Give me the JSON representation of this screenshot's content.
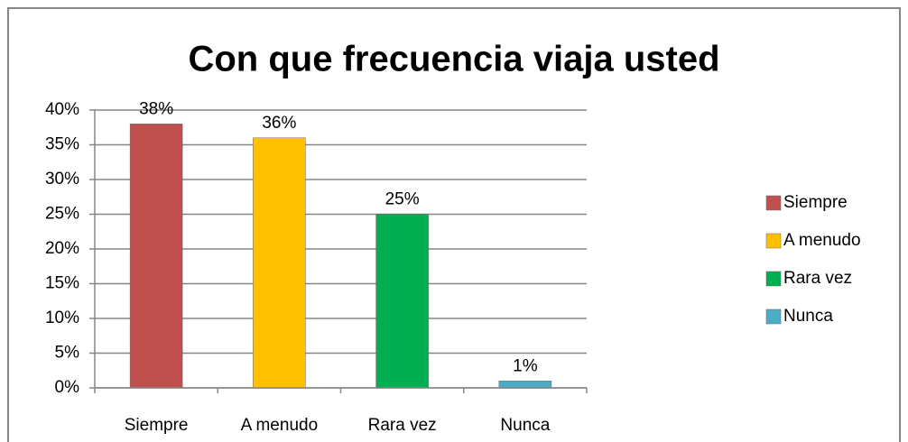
{
  "chart_data": {
    "type": "bar",
    "title": "Con que frecuencia viaja usted",
    "categories": [
      "Siempre",
      "A menudo",
      "Rara vez",
      "Nunca"
    ],
    "values": [
      38,
      36,
      25,
      1
    ],
    "value_labels": [
      "38%",
      "36%",
      "25%",
      "1%"
    ],
    "colors": [
      "#c0504d",
      "#ffc000",
      "#00b050",
      "#4bacc6"
    ],
    "ylim": [
      0,
      40
    ],
    "yticks": [
      {
        "value": 0,
        "label": "0%"
      },
      {
        "value": 5,
        "label": "5%"
      },
      {
        "value": 10,
        "label": "10%"
      },
      {
        "value": 15,
        "label": "15%"
      },
      {
        "value": 20,
        "label": "20%"
      },
      {
        "value": 25,
        "label": "25%"
      },
      {
        "value": 30,
        "label": "30%"
      },
      {
        "value": 35,
        "label": "35%"
      },
      {
        "value": 40,
        "label": "40%"
      }
    ],
    "grid": true,
    "legend": "right"
  }
}
